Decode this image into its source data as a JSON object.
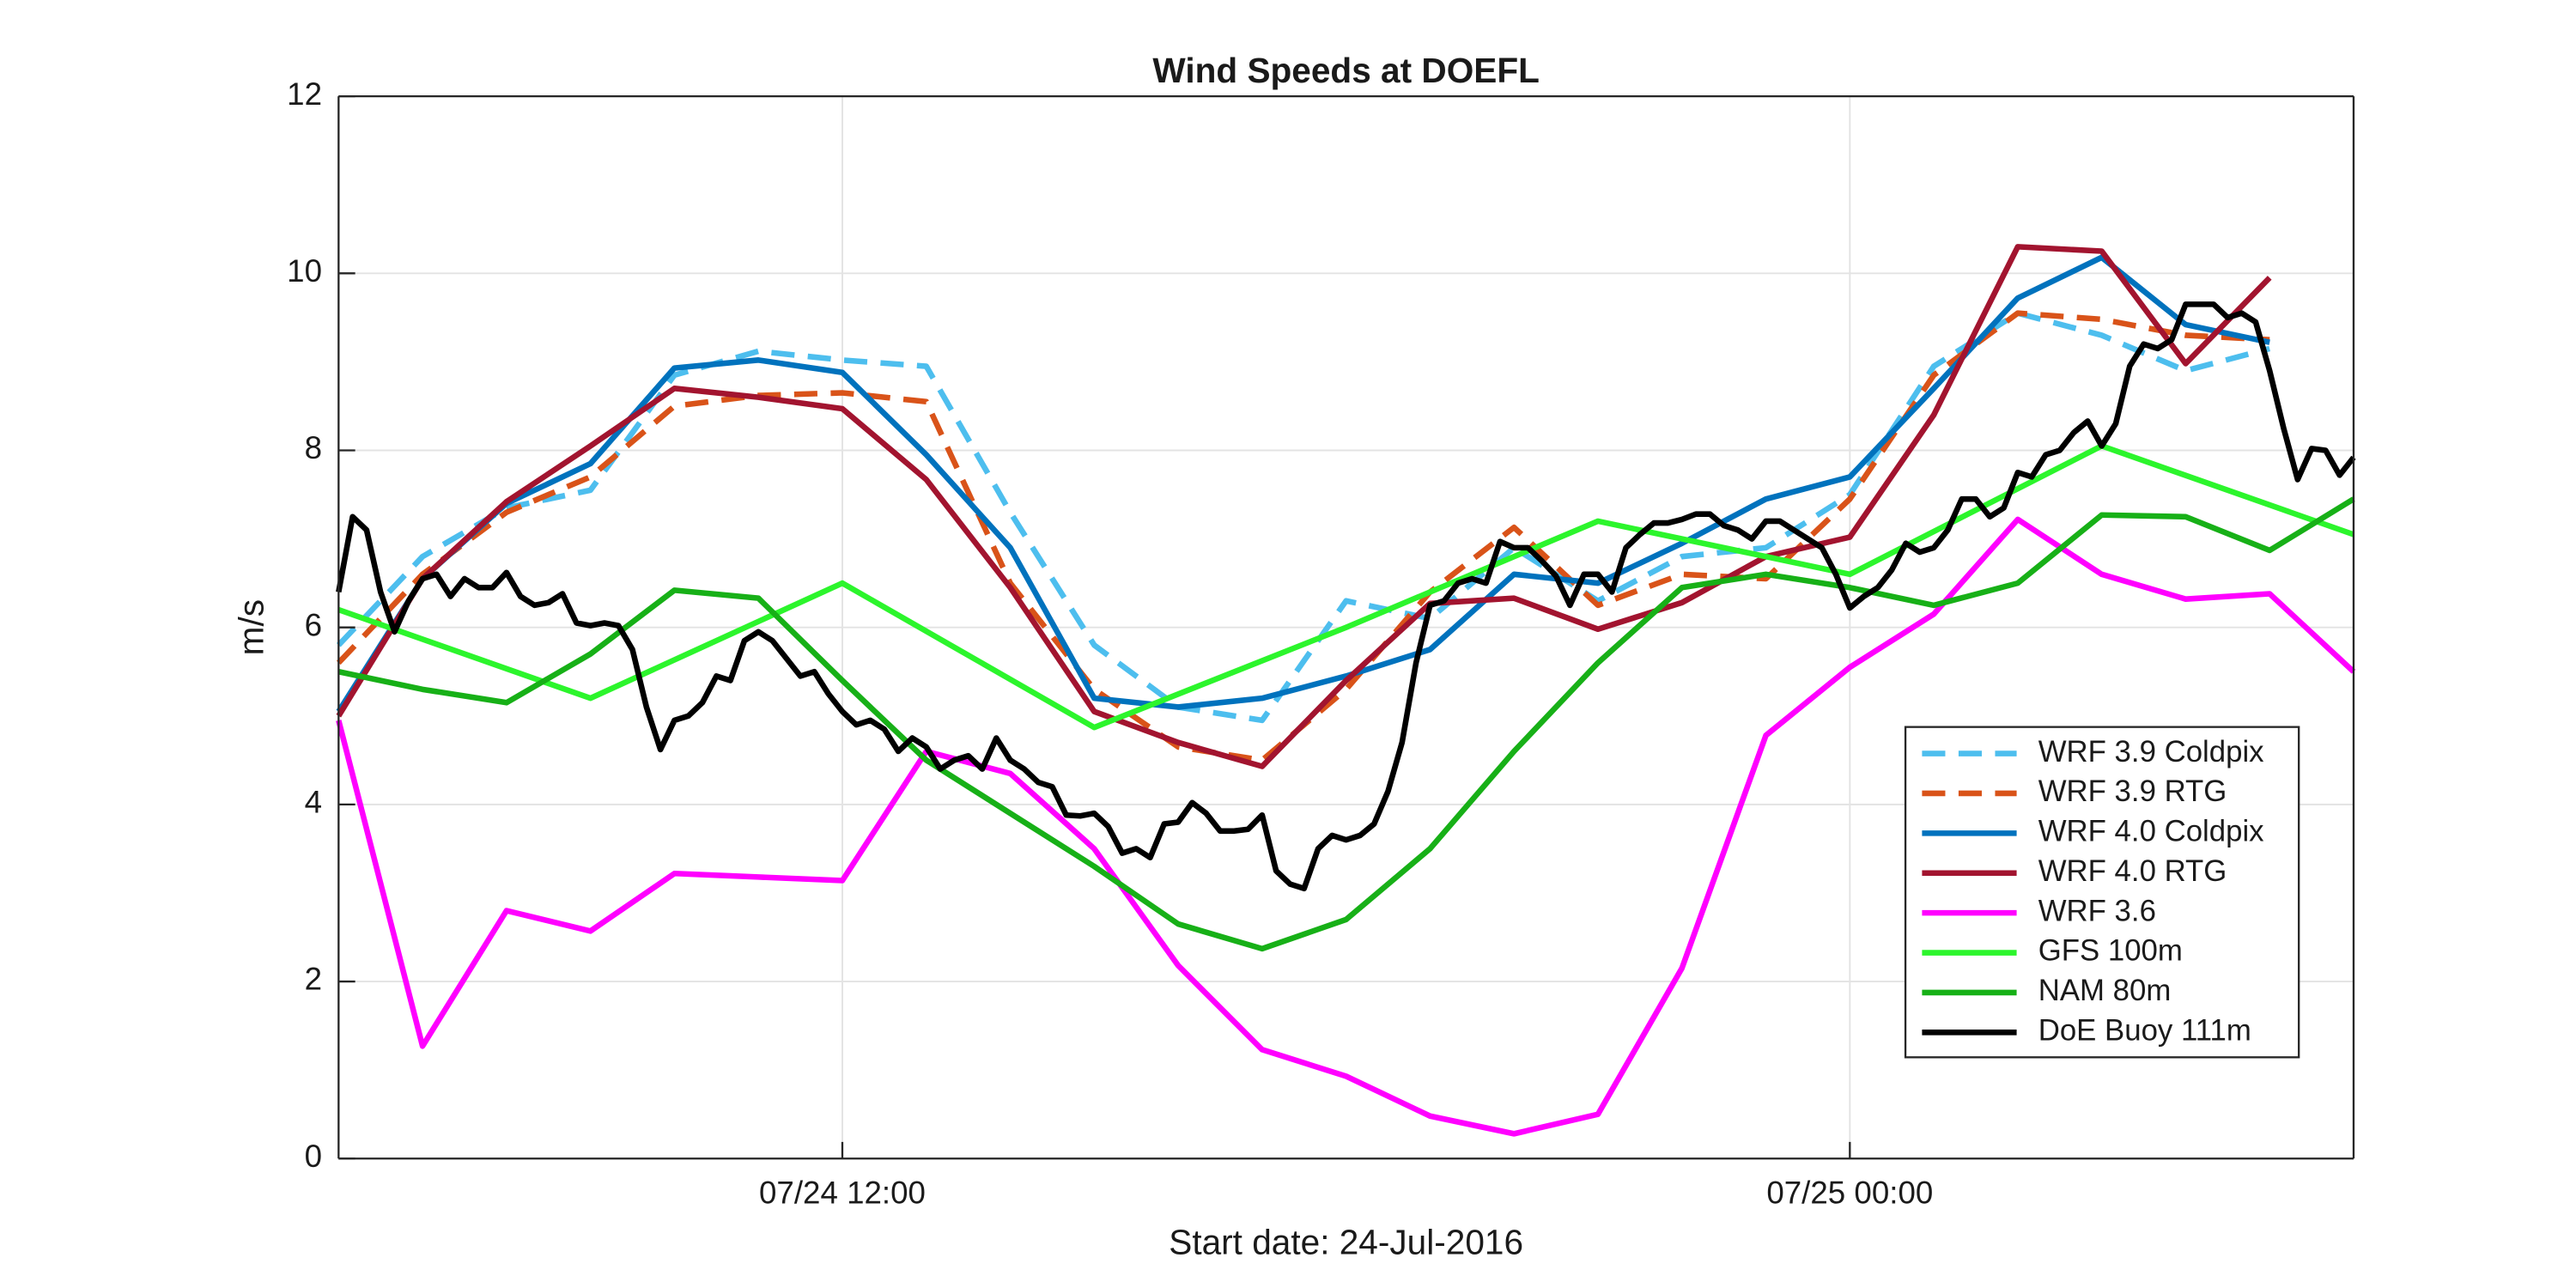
{
  "chart_data": {
    "type": "line",
    "title": "Wind Speeds at DOEFL",
    "xlabel": "Start date: 24-Jul-2016",
    "ylabel": "m/s",
    "xlim": [
      0,
      1440
    ],
    "xticks": [
      {
        "value": 360,
        "label": "07/24 12:00"
      },
      {
        "value": 1080,
        "label": "07/25 00:00"
      }
    ],
    "ylim": [
      0,
      12
    ],
    "yticks": [
      0,
      2,
      4,
      6,
      8,
      10,
      12
    ],
    "grid": true,
    "legend": "lower right",
    "series": [
      {
        "name": "WRF 3.9 Coldpix",
        "color": "#4dbeee",
        "dashed": true,
        "x": [
          0,
          60,
          120,
          180,
          240,
          300,
          360,
          420,
          480,
          540,
          600,
          660,
          720,
          780,
          840,
          900,
          960,
          1020,
          1080,
          1140,
          1200,
          1260,
          1320,
          1380
        ],
        "values": [
          5.8,
          6.8,
          7.35,
          7.55,
          8.85,
          9.12,
          9.02,
          8.95,
          7.3,
          5.8,
          5.1,
          4.95,
          6.3,
          6.1,
          6.9,
          6.3,
          6.8,
          6.9,
          7.5,
          8.95,
          9.55,
          9.3,
          8.9,
          9.15
        ]
      },
      {
        "name": "WRF 3.9 RTG",
        "color": "#d95319",
        "dashed": true,
        "x": [
          0,
          60,
          120,
          180,
          240,
          300,
          360,
          420,
          480,
          540,
          600,
          660,
          720,
          780,
          840,
          900,
          960,
          1020,
          1080,
          1140,
          1200,
          1260,
          1320,
          1380
        ],
        "values": [
          5.6,
          6.6,
          7.3,
          7.7,
          8.5,
          8.62,
          8.65,
          8.55,
          6.5,
          5.3,
          4.65,
          4.5,
          5.3,
          6.4,
          7.13,
          6.25,
          6.6,
          6.55,
          7.45,
          8.85,
          9.55,
          9.48,
          9.3,
          9.25
        ]
      },
      {
        "name": "WRF 4.0 Coldpix",
        "color": "#0072bd",
        "dashed": false,
        "x": [
          0,
          60,
          120,
          180,
          240,
          300,
          360,
          420,
          480,
          540,
          600,
          660,
          720,
          780,
          840,
          900,
          960,
          1020,
          1080,
          1140,
          1200,
          1260,
          1320,
          1380
        ],
        "values": [
          5.05,
          6.55,
          7.4,
          7.85,
          8.93,
          9.02,
          8.88,
          7.95,
          6.9,
          5.2,
          5.1,
          5.2,
          5.45,
          5.75,
          6.6,
          6.5,
          6.95,
          7.45,
          7.7,
          8.7,
          9.72,
          10.18,
          9.42,
          9.22
        ]
      },
      {
        "name": "WRF 4.0 RTG",
        "color": "#a2142f",
        "dashed": false,
        "x": [
          0,
          60,
          120,
          180,
          240,
          300,
          360,
          420,
          480,
          540,
          600,
          660,
          720,
          780,
          840,
          900,
          960,
          1020,
          1080,
          1140,
          1200,
          1260,
          1320,
          1380
        ],
        "values": [
          5.0,
          6.55,
          7.42,
          8.05,
          8.7,
          8.6,
          8.47,
          7.67,
          6.45,
          5.05,
          4.7,
          4.43,
          5.4,
          6.27,
          6.33,
          5.98,
          6.28,
          6.8,
          7.02,
          8.4,
          10.3,
          10.25,
          8.98,
          9.95
        ]
      },
      {
        "name": "WRF 3.6",
        "color": "#ff00ff",
        "dashed": false,
        "x": [
          0,
          60,
          120,
          180,
          240,
          300,
          360,
          420,
          480,
          540,
          600,
          660,
          720,
          780,
          840,
          900,
          960,
          1020,
          1080,
          1140,
          1200,
          1260,
          1320,
          1380,
          1440
        ],
        "values": [
          4.95,
          1.27,
          2.8,
          2.57,
          3.22,
          3.18,
          3.14,
          4.6,
          4.35,
          3.5,
          2.18,
          1.23,
          0.93,
          0.48,
          0.28,
          0.5,
          2.15,
          4.78,
          5.55,
          6.15,
          7.22,
          6.6,
          6.32,
          6.38,
          5.5
        ]
      },
      {
        "name": "GFS 100m",
        "color": "#2cf52c",
        "dashed": false,
        "x": [
          0,
          180,
          360,
          540,
          720,
          900,
          1080,
          1260,
          1440
        ],
        "values": [
          6.2,
          5.2,
          6.5,
          4.87,
          6.0,
          7.2,
          6.6,
          8.05,
          7.05
        ]
      },
      {
        "name": "NAM 80m",
        "color": "#17b017",
        "dashed": false,
        "x": [
          0,
          60,
          120,
          180,
          240,
          300,
          360,
          420,
          480,
          540,
          600,
          660,
          720,
          780,
          840,
          900,
          960,
          1020,
          1080,
          1140,
          1200,
          1260,
          1320,
          1380,
          1440
        ],
        "values": [
          5.5,
          5.3,
          5.15,
          5.7,
          6.42,
          6.33,
          5.4,
          4.5,
          3.9,
          3.3,
          2.65,
          2.37,
          2.7,
          3.5,
          4.6,
          5.6,
          6.45,
          6.6,
          6.45,
          6.25,
          6.5,
          7.27,
          7.25,
          6.87,
          7.45
        ]
      },
      {
        "name": "DoE Buoy 111m",
        "color": "#000000",
        "dashed": false,
        "x": [
          0,
          10,
          20,
          30,
          40,
          50,
          60,
          70,
          80,
          90,
          100,
          110,
          120,
          130,
          140,
          150,
          160,
          170,
          180,
          190,
          200,
          210,
          220,
          230,
          240,
          250,
          260,
          270,
          280,
          290,
          300,
          310,
          320,
          330,
          340,
          350,
          360,
          370,
          380,
          390,
          400,
          410,
          420,
          430,
          440,
          450,
          460,
          470,
          480,
          490,
          500,
          510,
          520,
          530,
          540,
          550,
          560,
          570,
          580,
          590,
          600,
          610,
          620,
          630,
          640,
          650,
          660,
          670,
          680,
          690,
          700,
          710,
          720,
          730,
          740,
          750,
          760,
          770,
          780,
          790,
          800,
          810,
          820,
          830,
          840,
          850,
          860,
          870,
          880,
          890,
          900,
          910,
          920,
          930,
          940,
          950,
          960,
          970,
          980,
          990,
          1000,
          1010,
          1020,
          1030,
          1040,
          1050,
          1060,
          1070,
          1080,
          1090,
          1100,
          1110,
          1120,
          1130,
          1140,
          1150,
          1160,
          1170,
          1180,
          1190,
          1200,
          1210,
          1220,
          1230,
          1240,
          1250,
          1260,
          1270,
          1280,
          1290,
          1300,
          1310,
          1320,
          1330,
          1340,
          1350,
          1360,
          1370,
          1380,
          1390,
          1400,
          1410,
          1420,
          1430,
          1440
        ],
        "values": [
          6.4,
          7.25,
          7.1,
          6.4,
          5.95,
          6.3,
          6.55,
          6.6,
          6.35,
          6.55,
          6.45,
          6.45,
          6.62,
          6.35,
          6.25,
          6.28,
          6.38,
          6.05,
          6.02,
          6.05,
          6.02,
          5.75,
          5.1,
          4.62,
          4.95,
          5.0,
          5.15,
          5.45,
          5.4,
          5.85,
          5.95,
          5.85,
          5.65,
          5.45,
          5.5,
          5.25,
          5.05,
          4.9,
          4.95,
          4.85,
          4.6,
          4.75,
          4.65,
          4.4,
          4.5,
          4.55,
          4.4,
          4.75,
          4.5,
          4.4,
          4.25,
          4.2,
          3.88,
          3.87,
          3.9,
          3.75,
          3.45,
          3.5,
          3.4,
          3.78,
          3.8,
          4.02,
          3.9,
          3.7,
          3.7,
          3.72,
          3.88,
          3.25,
          3.1,
          3.05,
          3.5,
          3.65,
          3.6,
          3.65,
          3.78,
          4.15,
          4.7,
          5.6,
          6.25,
          6.3,
          6.5,
          6.55,
          6.5,
          6.97,
          6.9,
          6.9,
          6.75,
          6.58,
          6.25,
          6.6,
          6.6,
          6.4,
          6.9,
          7.05,
          7.18,
          7.18,
          7.22,
          7.28,
          7.28,
          7.15,
          7.1,
          7.0,
          7.2,
          7.2,
          7.1,
          7.0,
          6.9,
          6.6,
          6.22,
          6.35,
          6.45,
          6.65,
          6.95,
          6.85,
          6.9,
          7.1,
          7.45,
          7.45,
          7.25,
          7.35,
          7.75,
          7.7,
          7.95,
          8.0,
          8.2,
          8.33,
          8.05,
          8.3,
          8.95,
          9.2,
          9.15,
          9.25,
          9.65,
          9.65,
          9.65,
          9.5,
          9.55,
          9.45,
          8.9,
          8.25,
          7.67,
          8.02,
          8.0,
          7.72,
          7.92
        ]
      }
    ]
  }
}
